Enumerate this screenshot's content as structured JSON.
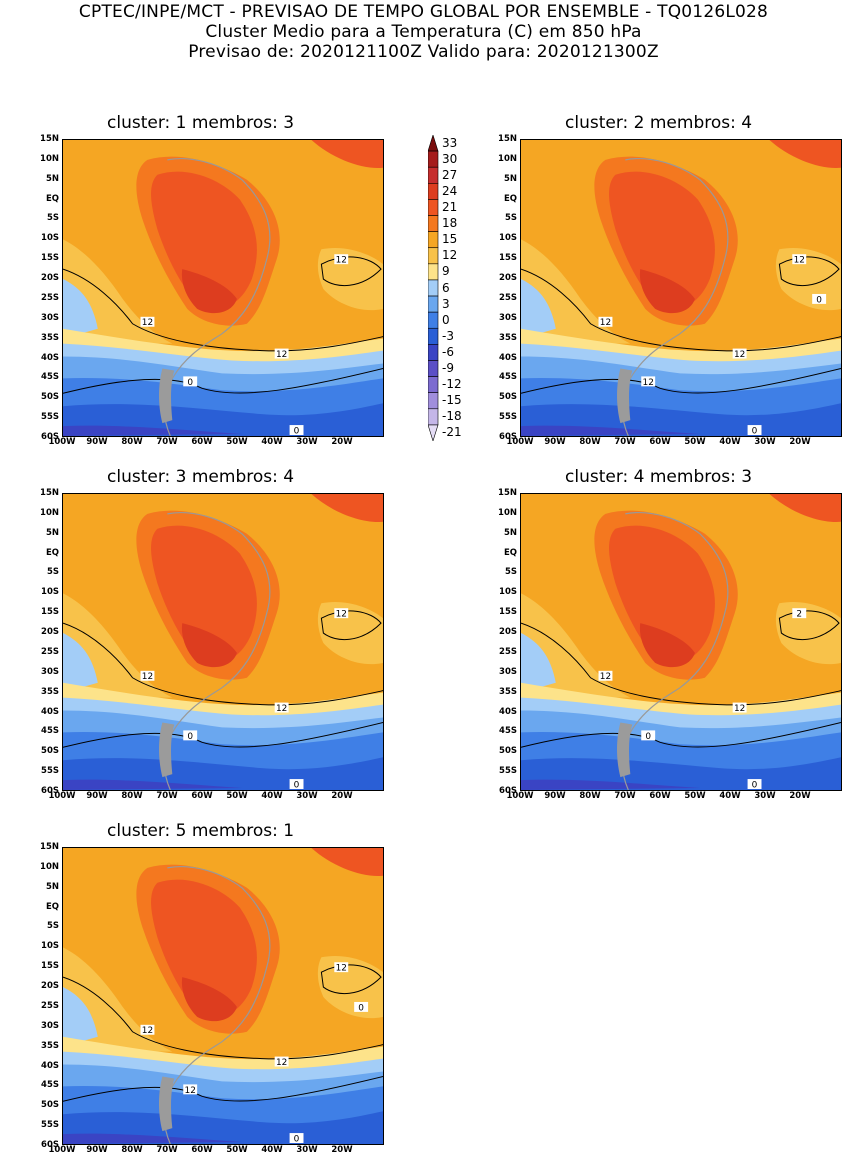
{
  "header": {
    "line1": "CPTEC/INPE/MCT - PREVISAO DE TEMPO GLOBAL POR ENSEMBLE - TQ0126L028",
    "line2": "Cluster Medio para a Temperatura (C) em 850 hPa",
    "line3": "Previsao de: 2020121100Z   Valido para: 2020121300Z"
  },
  "axes": {
    "lat_labels": [
      "15N",
      "10N",
      "5N",
      "EQ",
      "5S",
      "10S",
      "15S",
      "20S",
      "25S",
      "30S",
      "35S",
      "40S",
      "45S",
      "50S",
      "55S",
      "60S"
    ],
    "lon_labels": [
      "100W",
      "90W",
      "80W",
      "70W",
      "60W",
      "50W",
      "40W",
      "30W",
      "20W"
    ]
  },
  "colorbar": {
    "levels": [
      "33",
      "30",
      "27",
      "24",
      "21",
      "18",
      "15",
      "12",
      "9",
      "6",
      "3",
      "0",
      "-3",
      "-6",
      "-9",
      "-12",
      "-15",
      "-18",
      "-21"
    ],
    "colors": [
      "#7a0d0d",
      "#a51c1c",
      "#c62e2e",
      "#dd3d1f",
      "#ee5522",
      "#f4781f",
      "#f5a623",
      "#f8c24a",
      "#fde38a",
      "#a3cdf7",
      "#6aa7ef",
      "#3f7fe6",
      "#2a5fd6",
      "#3a44c4",
      "#5b4fc6",
      "#7c6bd0",
      "#a08edc",
      "#c4b6e8",
      "#e4dcf5"
    ],
    "style": "vertical, pointed ends"
  },
  "maps": [
    {
      "title": "cluster: 1   membros: 3",
      "contour_labels": [
        "12",
        "12",
        "12",
        "0",
        "0"
      ]
    },
    {
      "title": "cluster: 2   membros: 4",
      "contour_labels": [
        "12",
        "12",
        "12",
        "12",
        "0",
        "0"
      ]
    },
    {
      "title": "cluster: 3   membros: 4",
      "contour_labels": [
        "12",
        "12",
        "12",
        "0",
        "0"
      ]
    },
    {
      "title": "cluster: 4   membros: 3",
      "contour_labels": [
        "2",
        "12",
        "12",
        "0",
        "0"
      ]
    },
    {
      "title": "cluster: 5   membros: 1",
      "contour_labels": [
        "12",
        "12",
        "12",
        "12",
        "0",
        "0"
      ]
    }
  ]
}
